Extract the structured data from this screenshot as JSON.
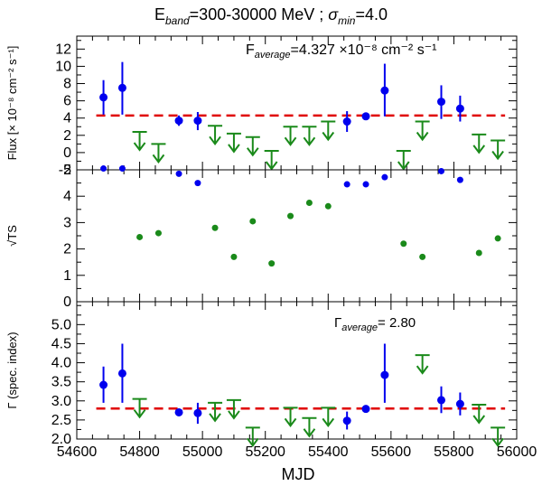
{
  "chart_data": {
    "type": "scatter",
    "title": {
      "prefix": "E",
      "prefix_sub": "band",
      "range": "=300-30000 MeV ; ",
      "sigma": "σ",
      "sigma_sub": "min",
      "sigma_val": "=4.0"
    },
    "xlabel": "MJD",
    "xlim": [
      54600,
      56000
    ],
    "xticks": [
      54600,
      54800,
      55000,
      55200,
      55400,
      55600,
      55800,
      56000
    ],
    "colors": {
      "detection": "#0000ee",
      "upper_limit": "#1a8a1a",
      "average": "#e00000",
      "ts": "#1a8a1a",
      "axis": "#000000"
    },
    "panels": [
      {
        "id": "flux",
        "ylabel": "Flux [× 10⁻⁸ cm⁻² s⁻¹]",
        "ylim": [
          -2,
          13.5
        ],
        "yticks": [
          -2,
          0,
          2,
          4,
          6,
          8,
          10,
          12
        ],
        "annotation": {
          "lead": "F",
          "sub": "average",
          "text": "=4.327 ×10⁻⁸ cm⁻² s⁻¹"
        },
        "average_line": {
          "value": 4.3,
          "x_from": 54685,
          "x_to": 55940
        },
        "detections": [
          {
            "x": 54685,
            "y": 6.4,
            "lo": 4.4,
            "hi": 8.4
          },
          {
            "x": 54745,
            "y": 7.5,
            "lo": 4.4,
            "hi": 10.5
          },
          {
            "x": 54925,
            "y": 3.7,
            "lo": 3.1,
            "hi": 4.3
          },
          {
            "x": 54985,
            "y": 3.7,
            "lo": 2.6,
            "hi": 4.7
          },
          {
            "x": 55460,
            "y": 3.6,
            "lo": 2.4,
            "hi": 4.8
          },
          {
            "x": 55520,
            "y": 4.2,
            "lo": 3.9,
            "hi": 4.5
          },
          {
            "x": 55580,
            "y": 7.2,
            "lo": 4.2,
            "hi": 10.3
          },
          {
            "x": 55760,
            "y": 5.9,
            "lo": 3.9,
            "hi": 7.8
          },
          {
            "x": 55820,
            "y": 5.1,
            "lo": 3.6,
            "hi": 6.6
          }
        ],
        "upper_limits": [
          {
            "x": 54800,
            "y": 2.4
          },
          {
            "x": 54860,
            "y": 1.0
          },
          {
            "x": 55040,
            "y": 3.1
          },
          {
            "x": 55100,
            "y": 2.2
          },
          {
            "x": 55160,
            "y": 1.8
          },
          {
            "x": 55220,
            "y": 0.2
          },
          {
            "x": 55280,
            "y": 3.0
          },
          {
            "x": 55340,
            "y": 3.0
          },
          {
            "x": 55400,
            "y": 3.6
          },
          {
            "x": 55640,
            "y": 0.2
          },
          {
            "x": 55700,
            "y": 3.6
          },
          {
            "x": 55880,
            "y": 2.1
          },
          {
            "x": 55940,
            "y": 1.4
          }
        ]
      },
      {
        "id": "ts",
        "ylabel": "√TS",
        "ylim": [
          0,
          5
        ],
        "yticks": [
          0,
          1,
          2,
          3,
          4,
          5
        ],
        "points_blue": [
          {
            "x": 54685,
            "y": 5.05
          },
          {
            "x": 54745,
            "y": 5.05
          },
          {
            "x": 54925,
            "y": 4.85
          },
          {
            "x": 54985,
            "y": 4.5
          },
          {
            "x": 55460,
            "y": 4.45
          },
          {
            "x": 55520,
            "y": 4.45
          },
          {
            "x": 55580,
            "y": 4.72
          },
          {
            "x": 55760,
            "y": 4.95
          },
          {
            "x": 55820,
            "y": 4.62
          }
        ],
        "points_green": [
          {
            "x": 54800,
            "y": 2.45
          },
          {
            "x": 54860,
            "y": 2.6
          },
          {
            "x": 55040,
            "y": 2.8
          },
          {
            "x": 55100,
            "y": 1.7
          },
          {
            "x": 55160,
            "y": 3.05
          },
          {
            "x": 55220,
            "y": 1.45
          },
          {
            "x": 55280,
            "y": 3.25
          },
          {
            "x": 55340,
            "y": 3.75
          },
          {
            "x": 55400,
            "y": 3.62
          },
          {
            "x": 55640,
            "y": 2.2
          },
          {
            "x": 55700,
            "y": 1.7
          },
          {
            "x": 55880,
            "y": 1.85
          },
          {
            "x": 55940,
            "y": 2.4
          }
        ]
      },
      {
        "id": "index",
        "ylabel": "Γ (spec. index)",
        "ylim": [
          2.0,
          5.6
        ],
        "yticks": [
          2.0,
          2.5,
          3.0,
          3.5,
          4.0,
          4.5,
          5.0
        ],
        "annotation": {
          "lead": "Γ",
          "sub": "average",
          "text": "= 2.80"
        },
        "average_line": {
          "value": 2.8,
          "x_from": 54685,
          "x_to": 55940
        },
        "detections": [
          {
            "x": 54685,
            "y": 3.42,
            "lo": 2.95,
            "hi": 3.9
          },
          {
            "x": 54745,
            "y": 3.72,
            "lo": 2.95,
            "hi": 4.5
          },
          {
            "x": 54925,
            "y": 2.7,
            "lo": 2.6,
            "hi": 2.8
          },
          {
            "x": 54985,
            "y": 2.68,
            "lo": 2.4,
            "hi": 2.95
          },
          {
            "x": 55460,
            "y": 2.48,
            "lo": 2.25,
            "hi": 2.72
          },
          {
            "x": 55520,
            "y": 2.79,
            "lo": 2.73,
            "hi": 2.85
          },
          {
            "x": 55580,
            "y": 3.68,
            "lo": 2.95,
            "hi": 4.5
          },
          {
            "x": 55760,
            "y": 3.02,
            "lo": 2.68,
            "hi": 3.38
          },
          {
            "x": 55820,
            "y": 2.92,
            "lo": 2.62,
            "hi": 3.22
          }
        ],
        "upper_limits": [
          {
            "x": 54800,
            "y": 3.05
          },
          {
            "x": 55040,
            "y": 2.95
          },
          {
            "x": 55100,
            "y": 3.02
          },
          {
            "x": 55160,
            "y": 2.3
          },
          {
            "x": 55280,
            "y": 2.82
          },
          {
            "x": 55340,
            "y": 2.55
          },
          {
            "x": 55400,
            "y": 2.82
          },
          {
            "x": 55700,
            "y": 4.2
          },
          {
            "x": 55880,
            "y": 2.9
          },
          {
            "x": 55940,
            "y": 2.3
          }
        ]
      }
    ]
  }
}
